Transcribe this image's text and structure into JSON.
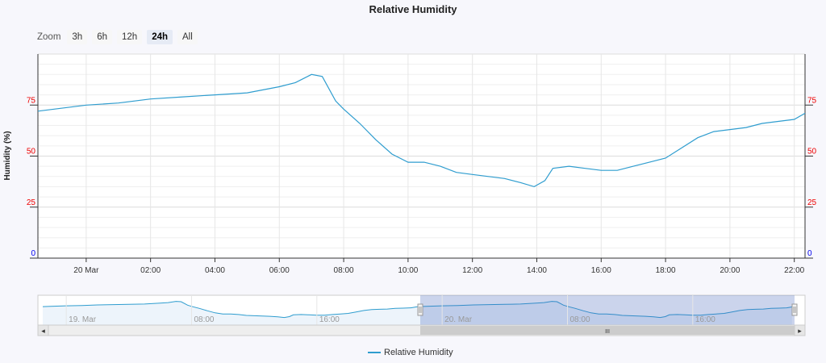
{
  "zoom": {
    "label": "Zoom",
    "buttons": [
      "3h",
      "6h",
      "12h",
      "24h",
      "All"
    ],
    "active": "24h"
  },
  "chart_data": {
    "type": "line",
    "title": "Relative Humidity",
    "ylabel": "Humidity (%)",
    "ylim": [
      0,
      100
    ],
    "yticks": [
      0,
      25,
      50,
      75
    ],
    "ytick_colors": {
      "0": "#0000ee",
      "25": "#ee0000",
      "50": "#ee0000",
      "75": "#ee0000"
    },
    "xlim": [
      "2024-03-19T22:30",
      "2024-03-20T22:20"
    ],
    "xticks": [
      "20 Mar",
      "02:00",
      "04:00",
      "06:00",
      "08:00",
      "10:00",
      "12:00",
      "14:00",
      "16:00",
      "18:00",
      "20:00",
      "22:00"
    ],
    "grid": true,
    "legend_position": "bottom",
    "series": [
      {
        "name": "Relative Humidity",
        "color": "#2f9dcf",
        "x": [
          "19 Mar 22:30",
          "19 Mar 23:00",
          "20 Mar 00:00",
          "20 Mar 01:00",
          "20 Mar 02:00",
          "20 Mar 03:00",
          "20 Mar 04:00",
          "20 Mar 05:00",
          "20 Mar 06:00",
          "20 Mar 06:30",
          "20 Mar 07:00",
          "20 Mar 07:20",
          "20 Mar 07:45",
          "20 Mar 08:00",
          "20 Mar 08:30",
          "20 Mar 09:00",
          "20 Mar 09:30",
          "20 Mar 10:00",
          "20 Mar 10:30",
          "20 Mar 11:00",
          "20 Mar 11:30",
          "20 Mar 12:00",
          "20 Mar 12:30",
          "20 Mar 13:00",
          "20 Mar 13:30",
          "20 Mar 13:55",
          "20 Mar 14:15",
          "20 Mar 14:30",
          "20 Mar 15:00",
          "20 Mar 15:30",
          "20 Mar 16:00",
          "20 Mar 16:30",
          "20 Mar 17:00",
          "20 Mar 17:30",
          "20 Mar 18:00",
          "20 Mar 18:30",
          "20 Mar 19:00",
          "20 Mar 19:30",
          "20 Mar 20:00",
          "20 Mar 20:30",
          "20 Mar 21:00",
          "20 Mar 21:30",
          "20 Mar 22:00",
          "20 Mar 22:20"
        ],
        "values": [
          72,
          73,
          75,
          76,
          78,
          79,
          80,
          81,
          84,
          86,
          90,
          89,
          77,
          73,
          66,
          58,
          51,
          47,
          47,
          45,
          42,
          41,
          40,
          39,
          37,
          35,
          38,
          44,
          45,
          44,
          43,
          43,
          45,
          47,
          49,
          54,
          59,
          62,
          63,
          64,
          66,
          67,
          68,
          71
        ]
      }
    ]
  },
  "navigator": {
    "xticks": [
      "19. Mar",
      "08:00",
      "16:00",
      "20. Mar",
      "08:00",
      "16:00"
    ],
    "scrollbar_grip": "III",
    "left_arrow": "◂",
    "right_arrow": "▸"
  },
  "legend": {
    "label": "Relative Humidity"
  }
}
